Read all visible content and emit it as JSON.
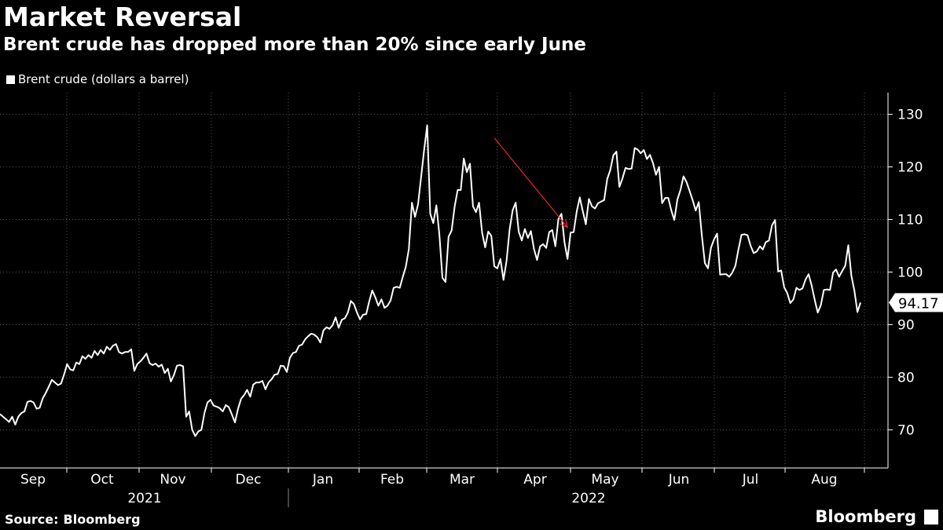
{
  "header": {
    "title": "Market Reversal",
    "subtitle": "Brent crude has dropped more than 20% since early June"
  },
  "legend": {
    "label": "Brent crude (dollars a barrel)"
  },
  "footer": {
    "source_label": "Source:",
    "source_value": "Bloomberg",
    "brand": "Bloomberg"
  },
  "colors": {
    "background": "#000000",
    "line": "#ffffff",
    "grid": "#555555",
    "arrow": "#e8242c"
  },
  "chart_data": {
    "type": "line",
    "series": [
      {
        "name": "Brent crude (dollars a barrel)"
      }
    ],
    "ylim": [
      63,
      132
    ],
    "yticks": [
      70,
      80,
      90,
      100,
      110,
      120,
      130
    ],
    "month_ticks": [
      "Sep",
      "Oct",
      "Nov",
      "Dec",
      "Jan",
      "Feb",
      "Mar",
      "Apr",
      "May",
      "Jun",
      "Jul",
      "Aug"
    ],
    "year_labels": [
      "2021",
      "2022"
    ],
    "last_value_label": "94.17",
    "annotation": {
      "type": "arrow",
      "from": [
        162,
        125.5
      ],
      "to": [
        186,
        108.5
      ]
    },
    "values": [
      73,
      72.5,
      72,
      71.5,
      72.5,
      71,
      72.5,
      73.2,
      73.5,
      75.3,
      75.5,
      75.2,
      74,
      74.2,
      76,
      77,
      78.2,
      79.5,
      79,
      78.5,
      78.8,
      80.5,
      82.5,
      81.5,
      81.3,
      82.8,
      82.5,
      84,
      83.5,
      84.2,
      83.7,
      85,
      84.2,
      85.2,
      84.5,
      85.8,
      85.2,
      86,
      86.3,
      84.8,
      84.5,
      84.8,
      84.8,
      85.3,
      81.2,
      82.5,
      83,
      83.7,
      84.5,
      82.7,
      82.3,
      82.6,
      82,
      82.4,
      80.8,
      81.6,
      79.2,
      80.4,
      82.2,
      82.3,
      82.1,
      72.5,
      73.5,
      70,
      68.8,
      69.7,
      70,
      73.2,
      75.2,
      75.7,
      74.6,
      74.4,
      74.1,
      73.5,
      74.7,
      74.3,
      72.9,
      71.4,
      74,
      75.9,
      76.6,
      77.6,
      76.3,
      78.6,
      79,
      79,
      79.3,
      77.7,
      79,
      79.6,
      80.5,
      80.6,
      82.2,
      82.1,
      81,
      83.7,
      84.6,
      84.8,
      86,
      86.2,
      87.2,
      87.8,
      88.3,
      88.1,
      87.6,
      86.6,
      88.9,
      89.5,
      89.2,
      89.9,
      91.4,
      89.4,
      90.9,
      91.2,
      92.3,
      94.5,
      93.9,
      92.3,
      91,
      91.9,
      92,
      94.4,
      96.5,
      95.2,
      93.6,
      94.8,
      93.2,
      93.6,
      94.6,
      97,
      97.2,
      97,
      99.1,
      101,
      104.4,
      113.2,
      110.5,
      112.9,
      118.1,
      123.2,
      127.9,
      111.1,
      109.3,
      112.7,
      107.2,
      98.9,
      98.1,
      106.7,
      107.9,
      112.5,
      115.6,
      115.6,
      121.6,
      119,
      120.6,
      112.5,
      111.4,
      113.2,
      107.5,
      104.7,
      107.7,
      106.9,
      101.1,
      100.7,
      102.5,
      98.5,
      102.1,
      108.1,
      111.7,
      113.2,
      107.7,
      106,
      108.2,
      106.5,
      107.8,
      104.4,
      102.3,
      104.9,
      105.3,
      104.6,
      107.6,
      108,
      104.9,
      110.1,
      111.1,
      105.6,
      102.5,
      107.5,
      107.6,
      111.5,
      114.2,
      111.6,
      109.1,
      113.9,
      112.5,
      112.1,
      113.1,
      113.4,
      113.7,
      117.7,
      119.4,
      122.2,
      122.9,
      116.2,
      117.8,
      119.8,
      119.6,
      119.7,
      123.6,
      123.3,
      122.6,
      123.2,
      121.5,
      122.3,
      120.7,
      118.5,
      120,
      113.1,
      114.1,
      114.1,
      111.7,
      109.9,
      113.8,
      115.6,
      118.2,
      117.1,
      115.4,
      113.7,
      111.7,
      113.3,
      107,
      101.7,
      100.7,
      104.6,
      106.2,
      107.3,
      99.5,
      99.6,
      99.6,
      99.1,
      99.9,
      101.2,
      104.3,
      107.1,
      107.2,
      107,
      105,
      103.6,
      103.9,
      104.9,
      104.3,
      105.7,
      106,
      108.9,
      109.9,
      100.1,
      100.3,
      97.1,
      96,
      94.1,
      94.8,
      97,
      96.6,
      96.9,
      98.6,
      99.6,
      97.4,
      94.7,
      92.3,
      93.7,
      96.6,
      96.7,
      96.6,
      99.9,
      100.5,
      99.1,
      100.2,
      101.2,
      105.1,
      99.3,
      96.5,
      92.4,
      94.2
    ]
  }
}
